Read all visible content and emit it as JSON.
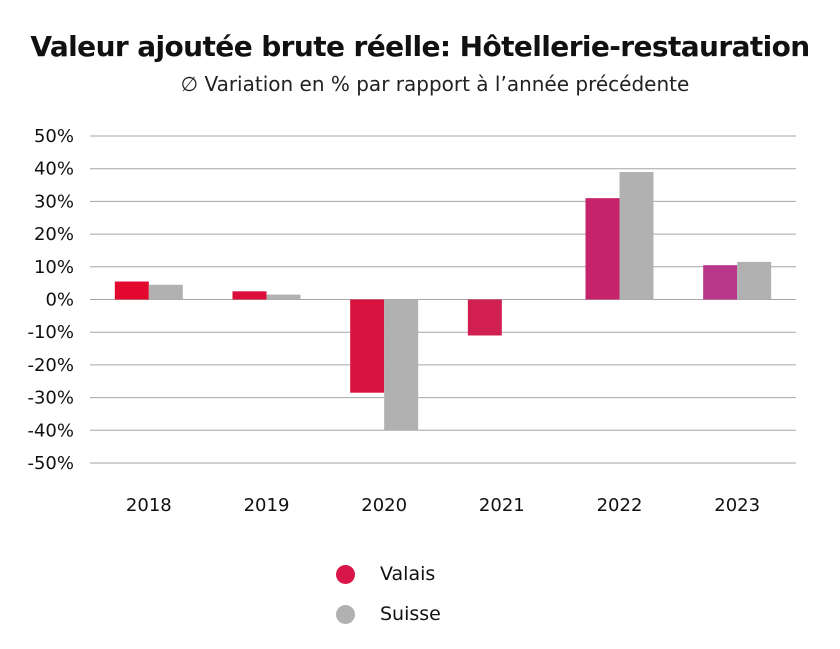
{
  "chart_data": {
    "type": "bar",
    "title": "Valeur ajoutée brute réelle: Hôtellerie-restauration",
    "subtitle": "∅ Variation en % par rapport à l’année précédente",
    "categories": [
      "2018",
      "2019",
      "2020",
      "2021",
      "2022",
      "2023"
    ],
    "series": [
      {
        "name": "Valais",
        "values": [
          5.5,
          2.5,
          -28.5,
          -11.0,
          31.0,
          10.5
        ],
        "colors": [
          "#e2082e",
          "#dc0c3c",
          "#d8133f",
          "#d01f50",
          "#c5246a",
          "#b9378a"
        ],
        "legend_color": "#d8164a"
      },
      {
        "name": "Suisse",
        "values": [
          4.5,
          1.5,
          -40.0,
          null,
          39.0,
          11.5
        ],
        "colors": [
          "#b1b1b1",
          "#b1b1b1",
          "#b1b1b1",
          "#b1b1b1",
          "#b1b1b1",
          "#b1b1b1"
        ],
        "legend_color": "#b1b1b1"
      }
    ],
    "y_ticks": [
      "50%",
      "40%",
      "30%",
      "20%",
      "10%",
      "0%",
      "-10%",
      "-20%",
      "-30%",
      "-40%",
      "-50%"
    ],
    "ylim": [
      -50,
      50
    ],
    "y_step": 10,
    "grid": true,
    "legend_position": "bottom"
  }
}
